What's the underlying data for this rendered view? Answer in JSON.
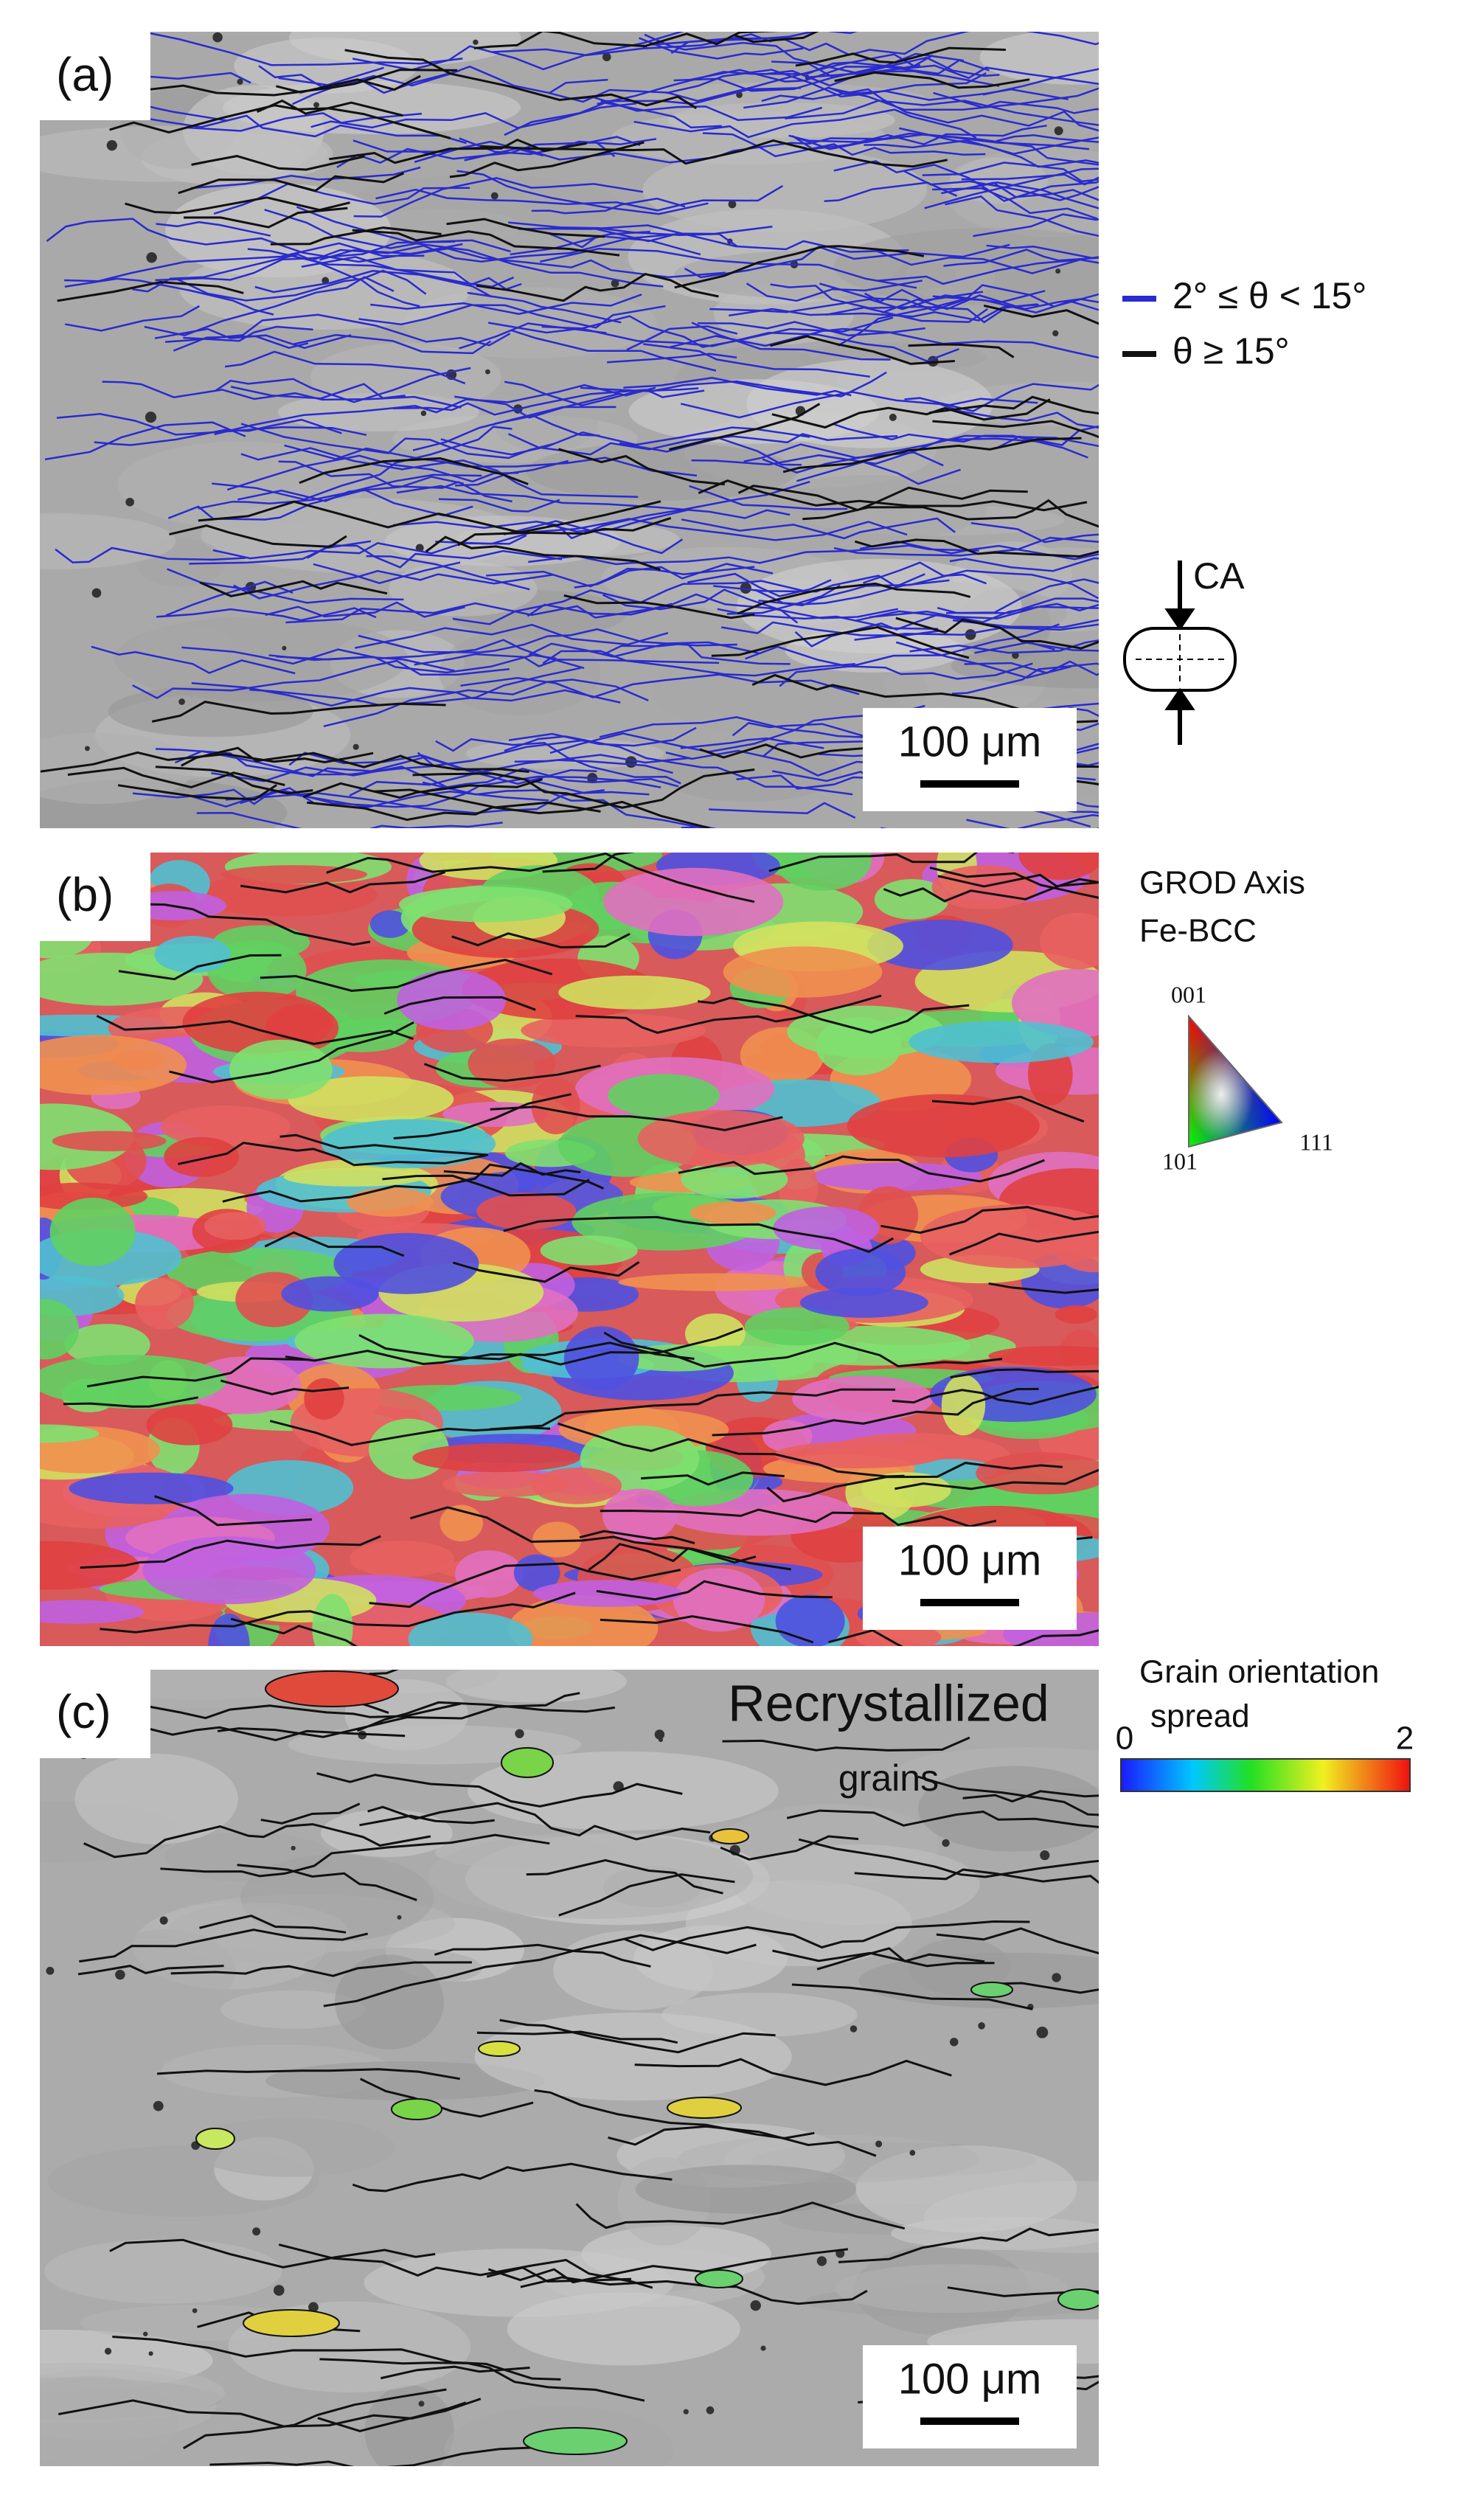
{
  "panels": [
    {
      "label": "(a)",
      "scale_bar": "100 μm",
      "legend": [
        {
          "label": "2° ≤ θ < 15°",
          "color": "#2a2ad0"
        },
        {
          "label": "θ ≥ 15°",
          "color": "#111111"
        }
      ],
      "axis_label": "CA"
    },
    {
      "label": "(b)",
      "scale_bar": "100 μm",
      "key_title": [
        "GROD Axis",
        "Fe-BCC"
      ],
      "triangle_labels": [
        "001",
        "101",
        "111"
      ]
    },
    {
      "label": "(c)",
      "scale_bar": "100 μm",
      "annotation": [
        "Recrystallized",
        "grains"
      ],
      "colorbar_title": [
        "Grain orientation",
        "spread"
      ],
      "colorbar_ticks": [
        "0",
        "2"
      ]
    }
  ]
}
